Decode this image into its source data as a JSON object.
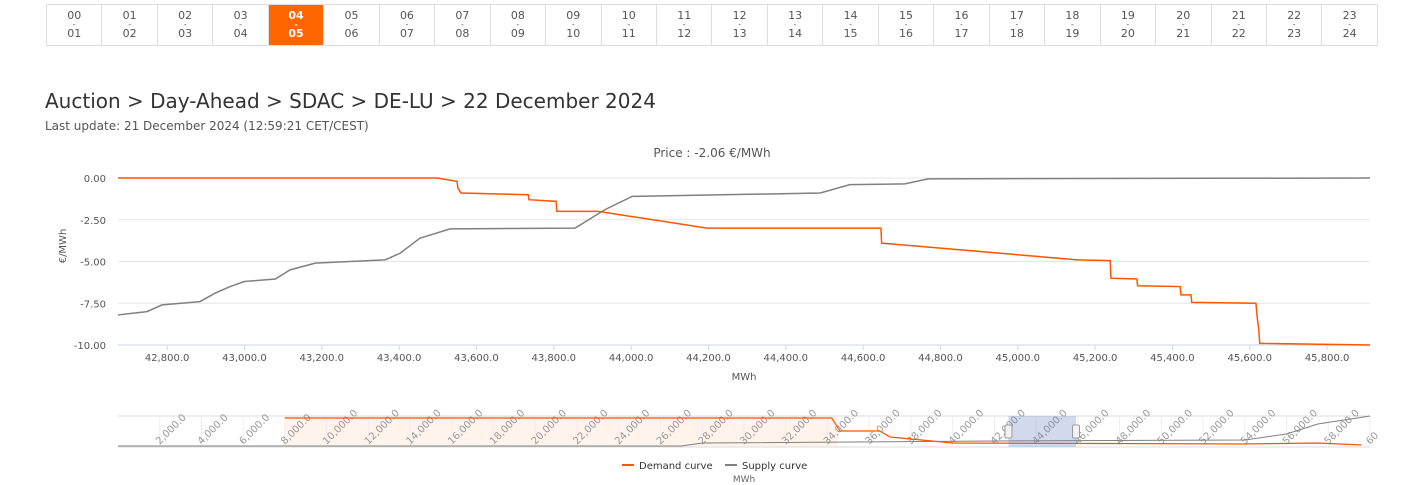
{
  "hours": [
    [
      "00",
      "01"
    ],
    [
      "01",
      "02"
    ],
    [
      "02",
      "03"
    ],
    [
      "03",
      "04"
    ],
    [
      "04",
      "05"
    ],
    [
      "05",
      "06"
    ],
    [
      "06",
      "07"
    ],
    [
      "07",
      "08"
    ],
    [
      "08",
      "09"
    ],
    [
      "09",
      "10"
    ],
    [
      "10",
      "11"
    ],
    [
      "11",
      "12"
    ],
    [
      "12",
      "13"
    ],
    [
      "13",
      "14"
    ],
    [
      "14",
      "15"
    ],
    [
      "15",
      "16"
    ],
    [
      "16",
      "17"
    ],
    [
      "17",
      "18"
    ],
    [
      "18",
      "19"
    ],
    [
      "19",
      "20"
    ],
    [
      "20",
      "21"
    ],
    [
      "21",
      "22"
    ],
    [
      "22",
      "23"
    ],
    [
      "23",
      "24"
    ]
  ],
  "active_hour": 4,
  "title": "Auction > Day-Ahead > SDAC > DE-LU > 22 December 2024",
  "last_update": "Last update: 21 December 2024 (12:59:21 CET/CEST)",
  "colors": {
    "demand": "#ff5500",
    "supply": "#808080",
    "accent": "#ff6600"
  },
  "chart_data": {
    "type": "line",
    "title": "Price : -2.06 €/MWh",
    "xlabel": "MWh",
    "ylabel": "€/MWh",
    "xlim": [
      42673,
      45911
    ],
    "ylim": [
      -10,
      0
    ],
    "xticks": [
      42800,
      43000,
      43200,
      43400,
      43600,
      43800,
      44000,
      44200,
      44400,
      44600,
      44800,
      45000,
      45200,
      45400,
      45600,
      45800
    ],
    "xtick_labels": [
      "42,800.0",
      "43,000.0",
      "43,200.0",
      "43,400.0",
      "43,600.0",
      "43,800.0",
      "44,000.0",
      "44,200.0",
      "44,400.0",
      "44,600.0",
      "44,800.0",
      "45,000.0",
      "45,200.0",
      "45,400.0",
      "45,600.0",
      "45,800.0"
    ],
    "yticks": [
      0,
      -2.5,
      -5,
      -7.5,
      -10
    ],
    "ytick_labels": [
      "0.00",
      "-2.50",
      "-5.00",
      "-7.50",
      "-10.00"
    ],
    "grid": true,
    "legend": "bottom-center",
    "series": [
      {
        "name": "Demand curve",
        "points": [
          [
            42673,
            0
          ],
          [
            43498,
            0
          ],
          [
            43550,
            -0.2
          ],
          [
            43552,
            -0.6
          ],
          [
            43560,
            -0.9
          ],
          [
            43734,
            -1.0
          ],
          [
            43736,
            -1.3
          ],
          [
            43806,
            -1.4
          ],
          [
            43808,
            -2.0
          ],
          [
            43915,
            -2.0
          ],
          [
            44196,
            -3.0
          ],
          [
            44646,
            -3.0
          ],
          [
            44648,
            -3.9
          ],
          [
            45154,
            -4.9
          ],
          [
            45239,
            -4.95
          ],
          [
            45241,
            -6.0
          ],
          [
            45308,
            -6.05
          ],
          [
            45310,
            -6.45
          ],
          [
            45420,
            -6.5
          ],
          [
            45422,
            -7.0
          ],
          [
            45448,
            -7.0
          ],
          [
            45450,
            -7.45
          ],
          [
            45616,
            -7.5
          ],
          [
            45620,
            -8.5
          ],
          [
            45623,
            -9.0
          ],
          [
            45626,
            -9.9
          ],
          [
            45911,
            -10.0
          ]
        ]
      },
      {
        "name": "Supply curve",
        "points": [
          [
            42673,
            -8.2
          ],
          [
            42748,
            -8.0
          ],
          [
            42787,
            -7.6
          ],
          [
            42885,
            -7.4
          ],
          [
            42924,
            -6.9
          ],
          [
            42963,
            -6.5
          ],
          [
            43000,
            -6.2
          ],
          [
            43080,
            -6.05
          ],
          [
            43118,
            -5.5
          ],
          [
            43183,
            -5.1
          ],
          [
            43364,
            -4.9
          ],
          [
            43403,
            -4.5
          ],
          [
            43454,
            -3.6
          ],
          [
            43532,
            -3.05
          ],
          [
            43855,
            -3.0
          ],
          [
            43932,
            -1.9
          ],
          [
            44003,
            -1.1
          ],
          [
            44489,
            -0.9
          ],
          [
            44566,
            -0.4
          ],
          [
            44708,
            -0.35
          ],
          [
            44768,
            -0.05
          ],
          [
            45911,
            0
          ]
        ]
      }
    ],
    "navigator": {
      "xlim": [
        0,
        60000
      ],
      "ticks": [
        "2,000.0",
        "4,000.0",
        "6,000.0",
        "8,000.0",
        "10,000.0",
        "12,000.0",
        "14,000.0",
        "16,000.0",
        "18,000.0",
        "20,000.0",
        "22,000.0",
        "24,000.0",
        "26,000.0",
        "28,000.0",
        "30,000.0",
        "32,000.0",
        "34,000.0",
        "36,000.0",
        "38,000.0",
        "40,000.0",
        "42,000.0",
        "44,000.0",
        "46,000.0",
        "48,000.0",
        "50,000.0",
        "52,000.0",
        "54,000.0",
        "56,000.0",
        "58,000.0",
        "60"
      ],
      "xlabel": "MWh"
    }
  }
}
